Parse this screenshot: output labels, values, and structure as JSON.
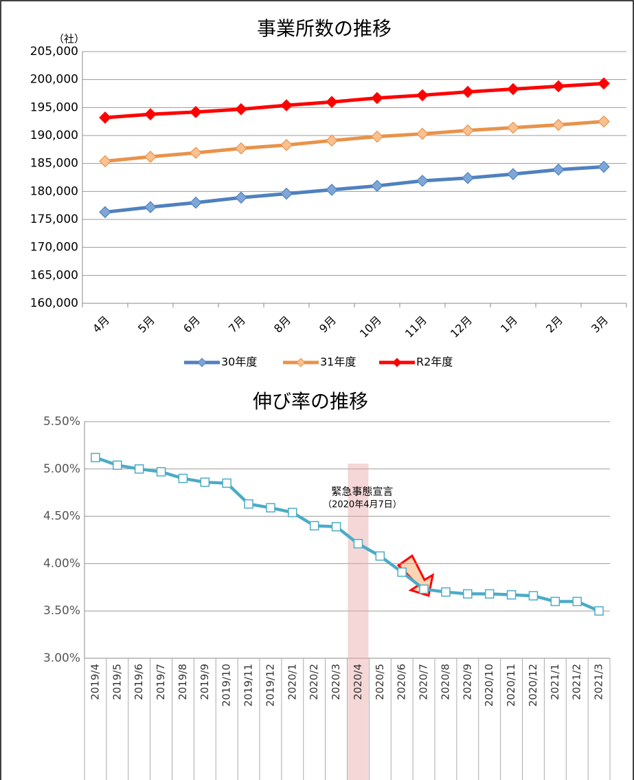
{
  "chart_data": [
    {
      "type": "line",
      "title": "事業所数の推移",
      "ylabel": "（社）",
      "categories": [
        "4月",
        "5月",
        "6月",
        "7月",
        "8月",
        "9月",
        "10月",
        "11月",
        "12月",
        "1月",
        "2月",
        "3月"
      ],
      "series": [
        {
          "name": "30年度",
          "color": "#4f81bd",
          "values": [
            176300,
            177200,
            178000,
            178900,
            179600,
            180300,
            181000,
            181900,
            182400,
            183100,
            183900,
            184400
          ]
        },
        {
          "name": "31年度",
          "color": "#f79646",
          "values": [
            185400,
            186200,
            186900,
            187700,
            188300,
            189100,
            189800,
            190300,
            190900,
            191400,
            191900,
            192500
          ]
        },
        {
          "name": "R2年度",
          "color": "#ff0000",
          "values": [
            193200,
            193800,
            194200,
            194700,
            195400,
            196000,
            196700,
            197200,
            197800,
            198300,
            198800,
            199300
          ]
        }
      ],
      "ylim": [
        160000,
        205000
      ],
      "yticks": [
        {
          "value": 160000,
          "label": "160,000"
        },
        {
          "value": 165000,
          "label": "165,000"
        },
        {
          "value": 170000,
          "label": "170,000"
        },
        {
          "value": 175000,
          "label": "175,000"
        },
        {
          "value": 180000,
          "label": "180,000"
        },
        {
          "value": 185000,
          "label": "185,000"
        },
        {
          "value": 190000,
          "label": "190,000"
        },
        {
          "value": 195000,
          "label": "195,000"
        },
        {
          "value": 200000,
          "label": "200,000"
        },
        {
          "value": 205000,
          "label": "205,000"
        }
      ],
      "grid": true,
      "legend": "bottom"
    },
    {
      "type": "line",
      "title": "伸び率の推移",
      "categories": [
        "2019/4",
        "2019/5",
        "2019/6",
        "2019/7",
        "2019/8",
        "2019/9",
        "2019/10",
        "2019/11",
        "2019/12",
        "2020/1",
        "2020/2",
        "2020/3",
        "2020/4",
        "2020/5",
        "2020/6",
        "2020/7",
        "2020/8",
        "2020/9",
        "2020/10",
        "2020/11",
        "2020/12",
        "2021/1",
        "2021/2",
        "2021/3"
      ],
      "series": [
        {
          "color": "#4bacc6",
          "values": [
            5.12,
            5.04,
            5.0,
            4.97,
            4.9,
            4.86,
            4.85,
            4.63,
            4.59,
            4.54,
            4.4,
            4.39,
            4.21,
            4.08,
            3.91,
            3.73,
            3.7,
            3.68,
            3.68,
            3.67,
            3.66,
            3.6,
            3.6,
            3.5
          ]
        }
      ],
      "ylim": [
        3.0,
        5.5
      ],
      "yticks": [
        {
          "value": 3.0,
          "label": "3.00%"
        },
        {
          "value": 3.5,
          "label": "3.50%"
        },
        {
          "value": 4.0,
          "label": "4.00%"
        },
        {
          "value": 4.5,
          "label": "4.50%"
        },
        {
          "value": 5.0,
          "label": "5.00%"
        },
        {
          "value": 5.5,
          "label": "5.50%"
        }
      ],
      "grid": true,
      "annotations": [
        "緊急事態宣言",
        "（2020年4月7日）"
      ]
    }
  ]
}
